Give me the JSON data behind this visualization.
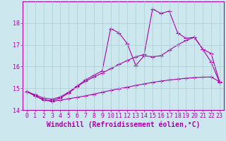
{
  "xlabel": "Windchill (Refroidissement éolien,°C)",
  "ylabel": "",
  "xlim": [
    -0.5,
    23.5
  ],
  "ylim": [
    14.0,
    19.0
  ],
  "yticks": [
    14,
    15,
    16,
    17,
    18
  ],
  "xticks": [
    0,
    1,
    2,
    3,
    4,
    5,
    6,
    7,
    8,
    9,
    10,
    11,
    12,
    13,
    14,
    15,
    16,
    17,
    18,
    19,
    20,
    21,
    22,
    23
  ],
  "bg_color": "#cce8ee",
  "grid_color": "#aaccd0",
  "line_color": "#aa00aa",
  "line1_x": [
    0,
    1,
    2,
    3,
    4,
    5,
    6,
    7,
    8,
    9,
    10,
    11,
    12,
    13,
    14,
    15,
    16,
    17,
    18,
    19,
    20,
    21,
    22,
    23
  ],
  "line1_y": [
    14.85,
    14.65,
    14.45,
    14.4,
    14.45,
    14.52,
    14.58,
    14.65,
    14.73,
    14.82,
    14.9,
    14.98,
    15.05,
    15.13,
    15.2,
    15.27,
    15.33,
    15.38,
    15.42,
    15.46,
    15.49,
    15.51,
    15.52,
    15.3
  ],
  "line2_x": [
    0,
    1,
    2,
    3,
    4,
    5,
    6,
    7,
    8,
    9,
    10,
    11,
    12,
    13,
    14,
    15,
    16,
    17,
    18,
    19,
    20,
    21,
    22,
    23
  ],
  "line2_y": [
    14.85,
    14.7,
    14.55,
    14.5,
    14.6,
    14.82,
    15.1,
    15.38,
    15.6,
    15.8,
    17.75,
    17.55,
    17.05,
    16.05,
    16.5,
    16.45,
    16.5,
    16.75,
    17.0,
    17.2,
    17.35,
    16.8,
    16.6,
    15.3
  ],
  "line3_x": [
    0,
    1,
    2,
    3,
    4,
    5,
    6,
    7,
    8,
    9,
    10,
    11,
    12,
    13,
    14,
    15,
    16,
    17,
    18,
    19,
    20,
    21,
    22,
    23
  ],
  "line3_y": [
    14.85,
    14.65,
    14.48,
    14.42,
    14.55,
    14.78,
    15.08,
    15.32,
    15.52,
    15.7,
    15.9,
    16.1,
    16.28,
    16.45,
    16.55,
    18.65,
    18.45,
    18.55,
    17.55,
    17.3,
    17.35,
    16.8,
    16.2,
    15.28
  ],
  "marker": "+",
  "markersize": 4,
  "linewidth": 0.8,
  "font_size": 7,
  "tick_font_size": 6
}
